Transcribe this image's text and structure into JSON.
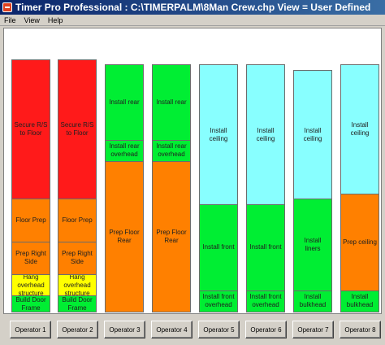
{
  "window": {
    "title": "Timer Pro Professional : C:\\TIMERPALM\\8Man Crew.chp    View = User Defined"
  },
  "menu": [
    {
      "label": "File"
    },
    {
      "label": "View"
    },
    {
      "label": "Help"
    }
  ],
  "colors": {
    "red": "#ff1a1a",
    "orange": "#ff8000",
    "yellow": "#ffff00",
    "green": "#00ee33",
    "cyan": "#88ffff"
  },
  "operators": [
    {
      "label": "Operator 1",
      "tasks": [
        {
          "label": "Secure R/S to Floor",
          "color": "red",
          "weight": 26
        },
        {
          "label": "Floor Prep",
          "color": "orange",
          "weight": 8
        },
        {
          "label": "Prep Right Side",
          "color": "orange",
          "weight": 6
        },
        {
          "label": "Hang overhead structure",
          "color": "yellow",
          "weight": 4
        },
        {
          "label": "Build Door Frame",
          "color": "green",
          "weight": 3
        }
      ]
    },
    {
      "label": "Operator 2",
      "tasks": [
        {
          "label": "Secure R/S to Floor",
          "color": "red",
          "weight": 26
        },
        {
          "label": "Floor Prep",
          "color": "orange",
          "weight": 8
        },
        {
          "label": "Prep Right Side",
          "color": "orange",
          "weight": 6
        },
        {
          "label": "Hang overhead structure",
          "color": "yellow",
          "weight": 4
        },
        {
          "label": "Build Door Frame",
          "color": "green",
          "weight": 3
        }
      ]
    },
    {
      "label": "Operator 3",
      "tasks": [
        {
          "label": "Install rear",
          "color": "green",
          "weight": 14
        },
        {
          "label": "Install rear overhead",
          "color": "green",
          "weight": 4
        },
        {
          "label": "Prep Floor Rear",
          "color": "orange",
          "weight": 28
        }
      ]
    },
    {
      "label": "Operator 4",
      "tasks": [
        {
          "label": "Install rear",
          "color": "green",
          "weight": 14
        },
        {
          "label": "Install rear overhead",
          "color": "green",
          "weight": 4
        },
        {
          "label": "Prep Floor Rear",
          "color": "orange",
          "weight": 28
        }
      ]
    },
    {
      "label": "Operator 5",
      "tasks": [
        {
          "label": "Install ceiling",
          "color": "cyan",
          "weight": 26
        },
        {
          "label": "Install front",
          "color": "green",
          "weight": 16
        },
        {
          "label": "Install front overhead",
          "color": "green",
          "weight": 4
        }
      ]
    },
    {
      "label": "Operator 6",
      "tasks": [
        {
          "label": "Install ceiling",
          "color": "cyan",
          "weight": 26
        },
        {
          "label": "Install front",
          "color": "green",
          "weight": 16
        },
        {
          "label": "Install front overhead",
          "color": "green",
          "weight": 4
        }
      ]
    },
    {
      "label": "Operator 7",
      "tasks": [
        {
          "label": "Install ceiling",
          "color": "cyan",
          "weight": 24
        },
        {
          "label": "Install liners",
          "color": "green",
          "weight": 17
        },
        {
          "label": "Install bulkhead",
          "color": "green",
          "weight": 4
        }
      ]
    },
    {
      "label": "Operator 8",
      "tasks": [
        {
          "label": "Install ceiling",
          "color": "cyan",
          "weight": 24
        },
        {
          "label": "Prep ceiling",
          "color": "orange",
          "weight": 18
        },
        {
          "label": "Install bulkhead",
          "color": "green",
          "weight": 4
        }
      ]
    }
  ]
}
